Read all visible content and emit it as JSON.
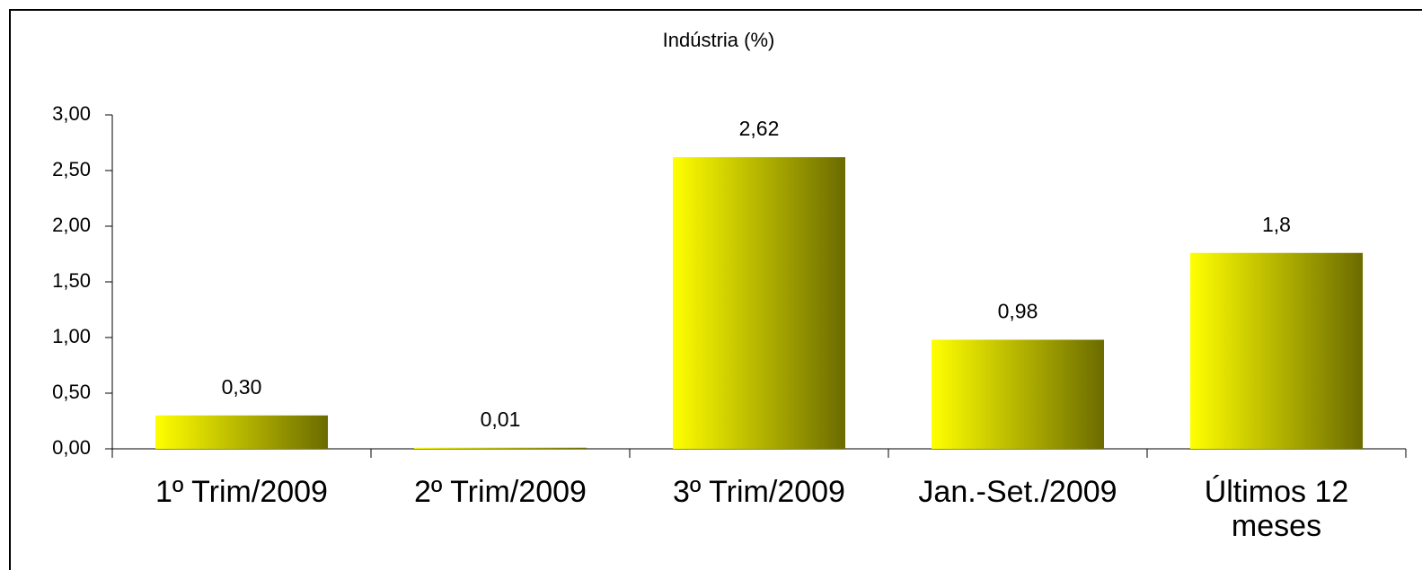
{
  "chart_data": {
    "type": "bar",
    "title": "Indústria (%)",
    "categories": [
      "1º Trim/2009",
      "2º Trim/2009",
      "3º Trim/2009",
      "Jan.-Set./2009",
      "Últimos 12 meses"
    ],
    "values": [
      0.3,
      0.01,
      2.62,
      0.98,
      1.76
    ],
    "value_labels": [
      "0,30",
      "0,01",
      "2,62",
      "0,98",
      "1,8"
    ],
    "gradient": [
      "#ffff00",
      "#6b6b00"
    ],
    "ylim": [
      0,
      3
    ],
    "yticks": [
      {
        "value": 0,
        "label": "0,00"
      },
      {
        "value": 0.5,
        "label": "0,50"
      },
      {
        "value": 1,
        "label": "1,00"
      },
      {
        "value": 1.5,
        "label": "1,50"
      },
      {
        "value": 2,
        "label": "2,00"
      },
      {
        "value": 2.5,
        "label": "2,50"
      },
      {
        "value": 3,
        "label": "3,00"
      }
    ],
    "grid": false
  }
}
